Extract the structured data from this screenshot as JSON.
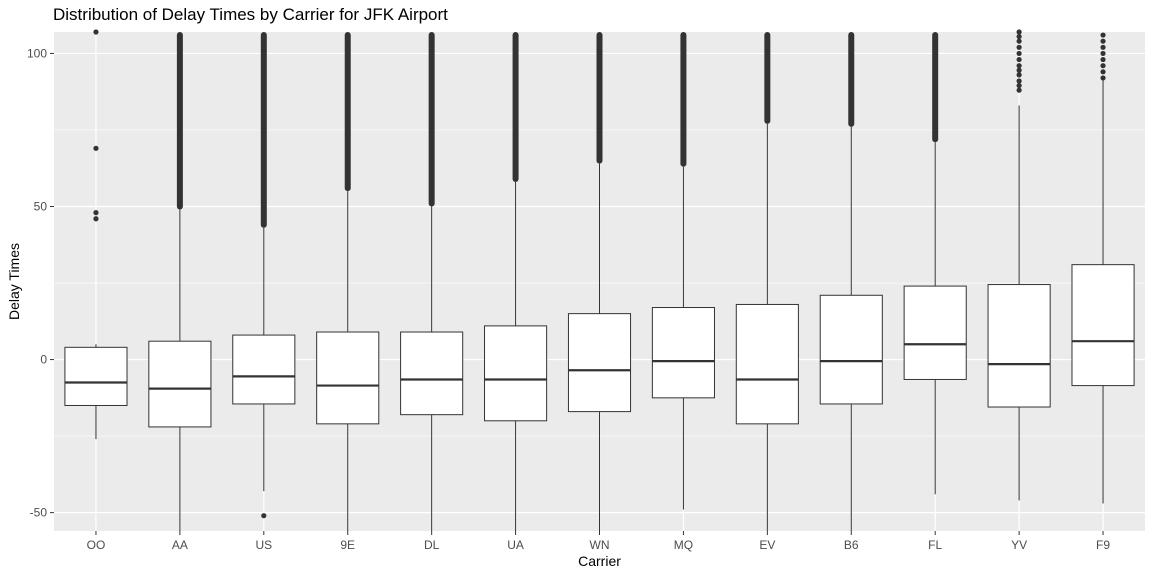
{
  "chart_data": {
    "type": "boxplot",
    "title": "Distribution of Delay Times by Carrier for JFK Airport",
    "xlabel": "Carrier",
    "ylabel": "Delay Times",
    "ylim": [
      -56,
      107
    ],
    "yticks": [
      -50,
      0,
      50,
      100
    ],
    "grid": true,
    "colors": {
      "panel": "#ebebeb",
      "grid_major": "#ffffff",
      "box_fill": "#ffffff",
      "box_line": "#333333",
      "outlier": "#333333"
    },
    "categories": [
      "OO",
      "AA",
      "US",
      "9E",
      "DL",
      "UA",
      "WN",
      "MQ",
      "EV",
      "B6",
      "FL",
      "YV",
      "F9"
    ],
    "boxes": [
      {
        "carrier": "OO",
        "q1": -15,
        "median": -7.5,
        "q3": 4,
        "whisker_low": -26,
        "whisker_high": 5,
        "outliers": [
          46,
          48,
          69,
          107
        ]
      },
      {
        "carrier": "AA",
        "q1": -22,
        "median": -9.5,
        "q3": 6,
        "whisker_low": -56,
        "whisker_high": 49,
        "outliers": [],
        "dense_outliers": [
          49,
          107
        ]
      },
      {
        "carrier": "US",
        "q1": -14.5,
        "median": -5.5,
        "q3": 8,
        "whisker_low": -43,
        "whisker_high": 43,
        "outliers": [
          -51
        ],
        "dense_outliers": [
          43,
          107
        ]
      },
      {
        "carrier": "9E",
        "q1": -21,
        "median": -8.5,
        "q3": 9,
        "whisker_low": -56,
        "whisker_high": 55,
        "outliers": [],
        "dense_outliers": [
          55,
          107
        ]
      },
      {
        "carrier": "DL",
        "q1": -18,
        "median": -6.5,
        "q3": 9,
        "whisker_low": -56,
        "whisker_high": 50,
        "outliers": [],
        "dense_outliers": [
          50,
          107
        ]
      },
      {
        "carrier": "UA",
        "q1": -20,
        "median": -6.5,
        "q3": 11,
        "whisker_low": -56,
        "whisker_high": 58,
        "outliers": [],
        "dense_outliers": [
          58,
          107
        ]
      },
      {
        "carrier": "WN",
        "q1": -17,
        "median": -3.5,
        "q3": 15,
        "whisker_low": -56,
        "whisker_high": 64,
        "outliers": [],
        "dense_outliers": [
          64,
          107
        ]
      },
      {
        "carrier": "MQ",
        "q1": -12.5,
        "median": -0.5,
        "q3": 17,
        "whisker_low": -49,
        "whisker_high": 63,
        "outliers": [],
        "dense_outliers": [
          63,
          107
        ]
      },
      {
        "carrier": "EV",
        "q1": -21,
        "median": -6.5,
        "q3": 18,
        "whisker_low": -56,
        "whisker_high": 77,
        "outliers": [],
        "dense_outliers": [
          77,
          107
        ]
      },
      {
        "carrier": "B6",
        "q1": -14.5,
        "median": -0.5,
        "q3": 21,
        "whisker_low": -56,
        "whisker_high": 76,
        "outliers": [],
        "dense_outliers": [
          76,
          107
        ]
      },
      {
        "carrier": "FL",
        "q1": -6.5,
        "median": 5,
        "q3": 24,
        "whisker_low": -44,
        "whisker_high": 71,
        "outliers": [],
        "dense_outliers": [
          71,
          107
        ]
      },
      {
        "carrier": "YV",
        "q1": -15.5,
        "median": -1.5,
        "q3": 24.5,
        "whisker_low": -46,
        "whisker_high": 83,
        "outliers": [
          88,
          89.5,
          91,
          93,
          94.5,
          96,
          98,
          100,
          102,
          104,
          105.5,
          107
        ],
        "dense_outliers": []
      },
      {
        "carrier": "F9",
        "q1": -8.5,
        "median": 6,
        "q3": 31,
        "whisker_low": -47,
        "whisker_high": 92,
        "outliers": [
          92,
          94,
          96,
          98,
          100,
          102,
          104,
          106
        ],
        "dense_outliers": []
      }
    ]
  }
}
